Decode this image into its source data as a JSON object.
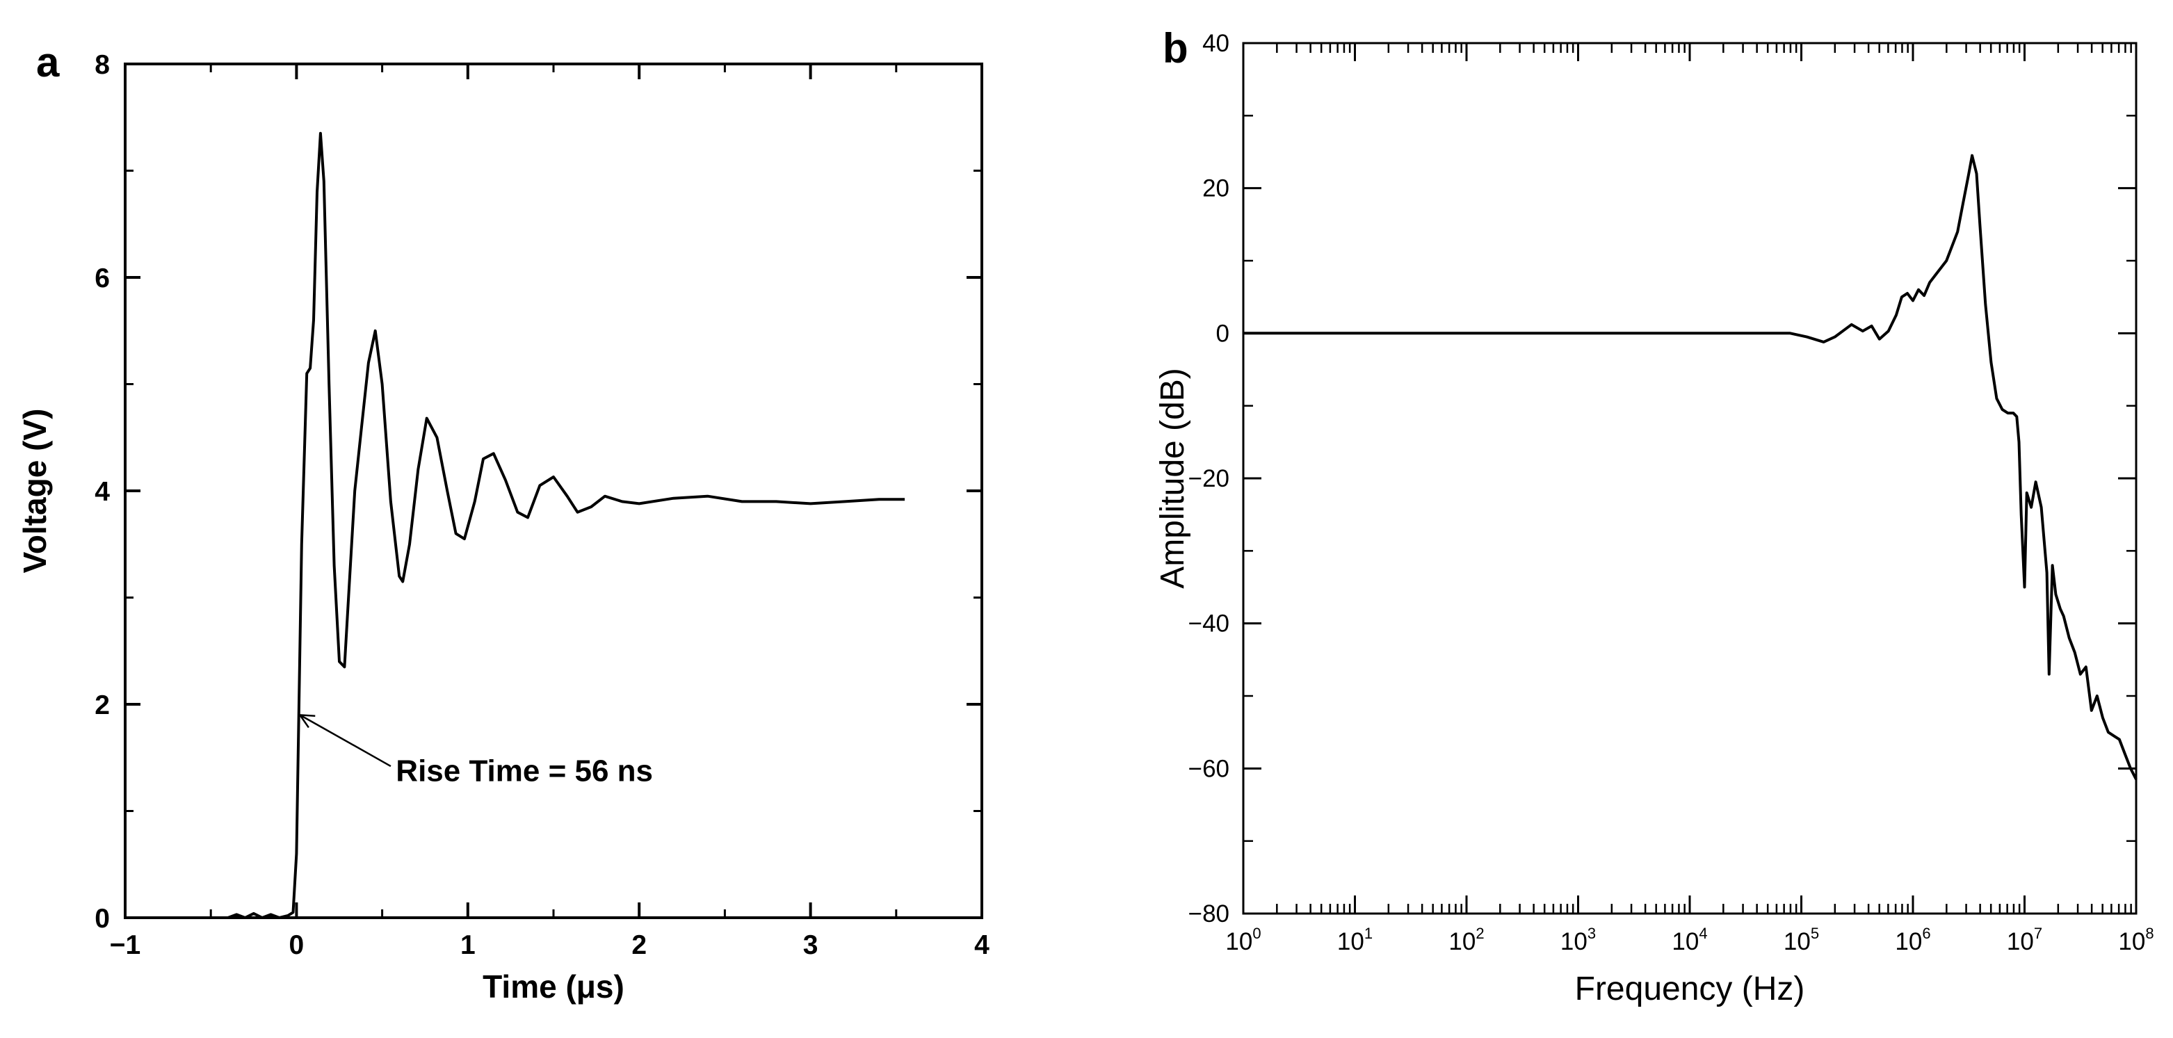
{
  "chart_data": [
    {
      "panel": "a",
      "type": "line",
      "title": "",
      "xlabel": "Time (μs)",
      "ylabel": "Voltage (V)",
      "xlim": [
        -1,
        4
      ],
      "ylim": [
        0,
        8
      ],
      "xticks": [
        "−1",
        "0",
        "1",
        "2",
        "3",
        "4"
      ],
      "yticks": [
        "0",
        "2",
        "4",
        "6",
        "8"
      ],
      "grid": false,
      "annotation": {
        "text": "Rise Time = 56 ns",
        "points_to": [
          0.02,
          1.9
        ]
      },
      "series": [
        {
          "name": "Voltage",
          "x": [
            -0.4,
            -0.35,
            -0.3,
            -0.25,
            -0.2,
            -0.15,
            -0.1,
            -0.05,
            -0.02,
            0.0,
            0.03,
            0.06,
            0.08,
            0.1,
            0.12,
            0.14,
            0.16,
            0.19,
            0.22,
            0.25,
            0.28,
            0.3,
            0.34,
            0.38,
            0.42,
            0.46,
            0.5,
            0.55,
            0.6,
            0.62,
            0.66,
            0.71,
            0.76,
            0.82,
            0.88,
            0.93,
            0.98,
            1.04,
            1.09,
            1.15,
            1.22,
            1.29,
            1.35,
            1.42,
            1.5,
            1.58,
            1.64,
            1.72,
            1.8,
            1.9,
            2.0,
            2.2,
            2.4,
            2.6,
            2.8,
            3.0,
            3.2,
            3.4,
            3.55
          ],
          "y": [
            0.0,
            0.03,
            0.0,
            0.04,
            0.0,
            0.03,
            0.0,
            0.02,
            0.05,
            0.6,
            3.5,
            5.1,
            5.15,
            5.6,
            6.8,
            7.35,
            6.9,
            5.0,
            3.3,
            2.4,
            2.35,
            2.9,
            4.0,
            4.6,
            5.2,
            5.5,
            5.0,
            3.9,
            3.2,
            3.15,
            3.5,
            4.2,
            4.68,
            4.5,
            4.0,
            3.6,
            3.55,
            3.9,
            4.3,
            4.35,
            4.1,
            3.8,
            3.75,
            4.05,
            4.13,
            3.95,
            3.8,
            3.85,
            3.95,
            3.9,
            3.88,
            3.93,
            3.95,
            3.9,
            3.9,
            3.88,
            3.9,
            3.92,
            3.92
          ]
        }
      ]
    },
    {
      "panel": "b",
      "type": "line",
      "title": "",
      "xlabel": "Frequency (Hz)",
      "ylabel": "Amplitude (dB)",
      "xscale": "log",
      "xlim_exponent": [
        0,
        8
      ],
      "ylim": [
        -80,
        40
      ],
      "xtick_exponents": [
        "0",
        "1",
        "2",
        "3",
        "4",
        "5",
        "6",
        "7",
        "8"
      ],
      "xtick_base": "10",
      "yticks": [
        "−80",
        "−60",
        "−40",
        "−20",
        "0",
        "20",
        "40"
      ],
      "grid": false,
      "series": [
        {
          "name": "Amplitude",
          "log10_x": [
            0.0,
            1.0,
            2.0,
            3.0,
            4.0,
            4.9,
            5.05,
            5.2,
            5.3,
            5.45,
            5.55,
            5.63,
            5.7,
            5.78,
            5.85,
            5.9,
            5.95,
            6.0,
            6.05,
            6.1,
            6.15,
            6.2,
            6.3,
            6.4,
            6.45,
            6.5,
            6.53,
            6.57,
            6.6,
            6.65,
            6.7,
            6.75,
            6.8,
            6.85,
            6.9,
            6.93,
            6.95,
            6.97,
            7.0,
            7.02,
            7.06,
            7.1,
            7.15,
            7.2,
            7.22,
            7.25,
            7.28,
            7.32,
            7.35,
            7.4,
            7.45,
            7.5,
            7.55,
            7.6,
            7.65,
            7.7,
            7.75,
            7.8,
            7.85,
            7.9,
            7.95,
            8.0
          ],
          "y": [
            0.0,
            0.0,
            0.0,
            0.0,
            0.0,
            0.0,
            -0.5,
            -1.2,
            -0.5,
            1.2,
            0.3,
            1.0,
            -0.8,
            0.3,
            2.5,
            5.0,
            5.5,
            4.5,
            6.0,
            5.2,
            7.0,
            8.0,
            10.0,
            14.0,
            18.0,
            22.0,
            24.5,
            22.0,
            15.0,
            4.0,
            -4.0,
            -9.0,
            -10.5,
            -11.0,
            -11.0,
            -11.5,
            -15.0,
            -25.0,
            -35.0,
            -22.0,
            -24.0,
            -20.5,
            -24.0,
            -33.0,
            -47.0,
            -32.0,
            -36.0,
            -38.0,
            -39.0,
            -42.0,
            -44.0,
            -47.0,
            -46.0,
            -52.0,
            -50.0,
            -53.0,
            -55.0,
            -55.5,
            -56.0,
            -58.0,
            -60.0,
            -61.5
          ]
        }
      ]
    }
  ],
  "panel_labels": {
    "a": "a",
    "b": "b"
  }
}
